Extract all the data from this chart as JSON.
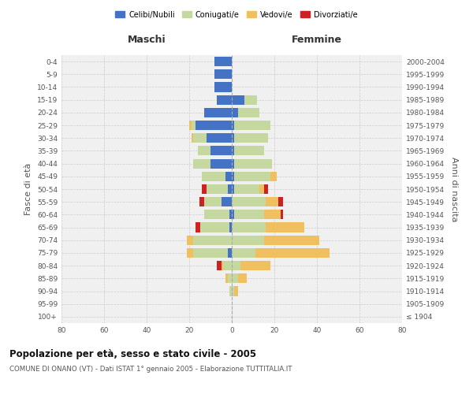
{
  "age_groups": [
    "100+",
    "95-99",
    "90-94",
    "85-89",
    "80-84",
    "75-79",
    "70-74",
    "65-69",
    "60-64",
    "55-59",
    "50-54",
    "45-49",
    "40-44",
    "35-39",
    "30-34",
    "25-29",
    "20-24",
    "15-19",
    "10-14",
    "5-9",
    "0-4"
  ],
  "birth_years": [
    "≤ 1904",
    "1905-1909",
    "1910-1914",
    "1915-1919",
    "1920-1924",
    "1925-1929",
    "1930-1934",
    "1935-1939",
    "1940-1944",
    "1945-1949",
    "1950-1954",
    "1955-1959",
    "1960-1964",
    "1965-1969",
    "1970-1974",
    "1975-1979",
    "1980-1984",
    "1985-1989",
    "1990-1994",
    "1995-1999",
    "2000-2004"
  ],
  "male": {
    "celibi": [
      0,
      0,
      0,
      0,
      0,
      2,
      0,
      1,
      1,
      5,
      2,
      3,
      10,
      10,
      12,
      17,
      13,
      7,
      8,
      8,
      8
    ],
    "coniugati": [
      0,
      0,
      1,
      2,
      4,
      16,
      18,
      14,
      12,
      8,
      10,
      11,
      8,
      6,
      6,
      2,
      0,
      0,
      0,
      0,
      0
    ],
    "vedovi": [
      0,
      0,
      0,
      1,
      1,
      3,
      3,
      0,
      0,
      0,
      0,
      0,
      0,
      0,
      1,
      1,
      0,
      0,
      0,
      0,
      0
    ],
    "divorziati": [
      0,
      0,
      0,
      0,
      2,
      0,
      0,
      2,
      0,
      2,
      2,
      0,
      0,
      0,
      0,
      0,
      0,
      0,
      0,
      0,
      0
    ]
  },
  "female": {
    "nubili": [
      0,
      0,
      0,
      0,
      0,
      0,
      0,
      0,
      1,
      0,
      1,
      1,
      1,
      1,
      1,
      1,
      3,
      6,
      0,
      0,
      0
    ],
    "coniugate": [
      0,
      0,
      1,
      3,
      4,
      11,
      15,
      16,
      14,
      16,
      12,
      17,
      18,
      14,
      16,
      17,
      10,
      6,
      0,
      0,
      0
    ],
    "vedove": [
      0,
      0,
      2,
      4,
      14,
      35,
      26,
      18,
      8,
      6,
      2,
      3,
      0,
      0,
      0,
      0,
      0,
      0,
      0,
      0,
      0
    ],
    "divorziate": [
      0,
      0,
      0,
      0,
      0,
      0,
      0,
      0,
      1,
      2,
      2,
      0,
      0,
      0,
      0,
      0,
      0,
      0,
      0,
      0,
      0
    ]
  },
  "colors": {
    "celibi": "#4472c4",
    "coniugati": "#c5d8a0",
    "vedovi": "#f0c060",
    "divorziati": "#cc2222"
  },
  "xlim": 80,
  "title": "Popolazione per età, sesso e stato civile - 2005",
  "subtitle": "COMUNE DI ONANO (VT) - Dati ISTAT 1° gennaio 2005 - Elaborazione TUTTITALIA.IT",
  "ylabel_left": "Fasce di età",
  "ylabel_right": "Anni di nascita",
  "xlabel_left": "Maschi",
  "xlabel_right": "Femmine",
  "legend_labels": [
    "Celibi/Nubili",
    "Coniugati/e",
    "Vedovi/e",
    "Divorziati/e"
  ],
  "bg_color": "#f0f0f0",
  "bar_height": 0.75
}
